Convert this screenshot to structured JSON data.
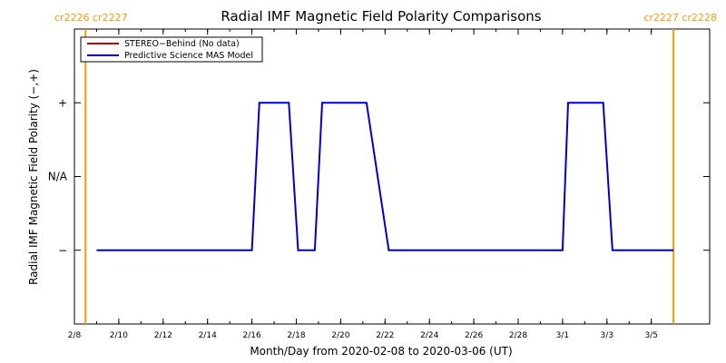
{
  "chart_data": {
    "type": "line",
    "title": "Radial IMF Magnetic Field Polarity Comparisons",
    "xlabel": "Month/Day from 2020-02-08 to 2020-03-06 (UT)",
    "ylabel": "Radial IMF Magnetic Field Polarity (−,+)",
    "x_start": "2020-02-08",
    "x_end": "2020-03-06",
    "x_ticks": [
      {
        "label": "2/8",
        "date": "2020-02-08"
      },
      {
        "label": "2/10",
        "date": "2020-02-10"
      },
      {
        "label": "2/12",
        "date": "2020-02-12"
      },
      {
        "label": "2/14",
        "date": "2020-02-14"
      },
      {
        "label": "2/16",
        "date": "2020-02-16"
      },
      {
        "label": "2/18",
        "date": "2020-02-18"
      },
      {
        "label": "2/20",
        "date": "2020-02-20"
      },
      {
        "label": "2/22",
        "date": "2020-02-22"
      },
      {
        "label": "2/24",
        "date": "2020-02-24"
      },
      {
        "label": "2/26",
        "date": "2020-02-26"
      },
      {
        "label": "2/28",
        "date": "2020-02-28"
      },
      {
        "label": "3/1",
        "date": "2020-03-01"
      },
      {
        "label": "3/3",
        "date": "2020-03-03"
      },
      {
        "label": "3/5",
        "date": "2020-03-05"
      }
    ],
    "y_ticks": [
      {
        "label": "+",
        "value": 1
      },
      {
        "label": "N/A",
        "value": 0
      },
      {
        "label": "−",
        "value": -1
      }
    ],
    "ylim": [
      -2,
      2
    ],
    "grid": false,
    "legend": {
      "placement": "top-left",
      "entries": [
        {
          "label": "STEREO−Behind (No data)",
          "color": "#cc0000"
        },
        {
          "label": "Predictive Science MAS Model",
          "color": "#0000cc"
        }
      ]
    },
    "series": [
      {
        "name": "Predictive Science MAS Model",
        "color": "#0000cc",
        "points": [
          [
            "2020-02-09T00:00",
            -1
          ],
          [
            "2020-02-16T00:00",
            -1
          ],
          [
            "2020-02-16T08:00",
            1
          ],
          [
            "2020-02-17T16:00",
            1
          ],
          [
            "2020-02-18T02:00",
            -1
          ],
          [
            "2020-02-18T20:00",
            -1
          ],
          [
            "2020-02-19T04:00",
            1
          ],
          [
            "2020-02-21T04:00",
            1
          ],
          [
            "2020-02-22T04:00",
            -1
          ],
          [
            "2020-03-01T00:00",
            -1
          ],
          [
            "2020-03-01T06:00",
            1
          ],
          [
            "2020-03-02T20:00",
            1
          ],
          [
            "2020-03-03T06:00",
            -1
          ],
          [
            "2020-03-06T00:00",
            -1
          ]
        ]
      }
    ],
    "markers": [
      {
        "date": "2020-02-08T12:00",
        "label": "cr2226 cr2227",
        "color": "#ff9900",
        "label_side": "left"
      },
      {
        "date": "2020-03-06T00:00",
        "label": "cr2227 cr2228",
        "color": "#ff9900",
        "label_side": "right"
      }
    ]
  }
}
